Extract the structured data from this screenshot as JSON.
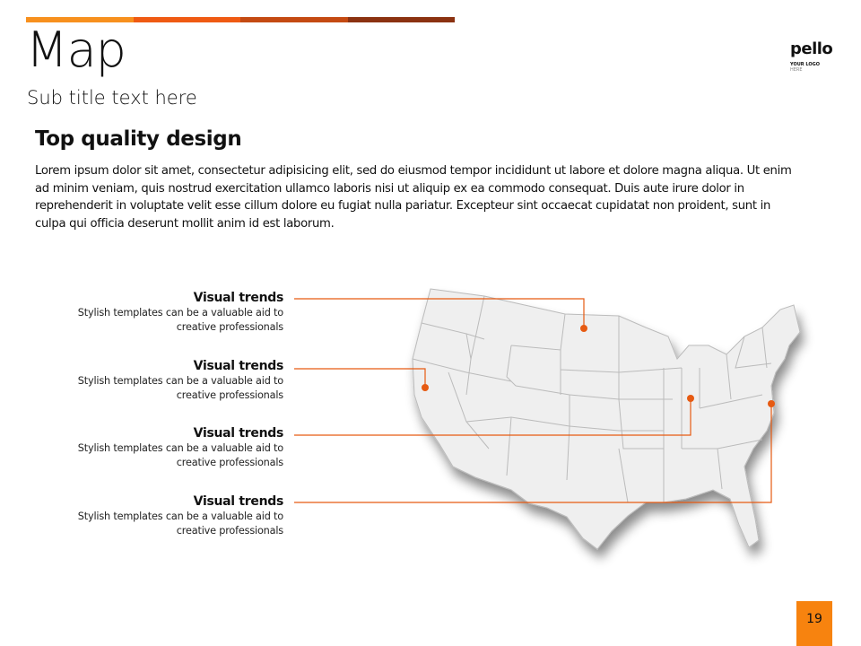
{
  "header": {
    "title": "Map",
    "subtitle": "Sub title text here",
    "accent_colors": [
      "#f7901e",
      "#ef5a13",
      "#c44a12",
      "#8b3211"
    ]
  },
  "logo": {
    "name": "pello",
    "line1": "YOUR LOGO",
    "line2": "HERE"
  },
  "content": {
    "heading": "Top quality design",
    "body": "Lorem ipsum dolor sit amet, consectetur adipisicing elit, sed do eiusmod tempor incididunt ut labore et dolore magna aliqua. Ut enim ad minim veniam, quis nostrud exercitation ullamco laboris nisi ut aliquip ex ea commodo  consequat. Duis aute irure dolor in reprehenderit in voluptate velit esse cillum dolore eu fugiat nulla pariatur. Excepteur sint occaecat cupidatat non proident, sunt in culpa qui officia deserunt mollit anim id est laborum."
  },
  "callouts": [
    {
      "title": "Visual trends",
      "text": "Stylish templates can be a valuable aid to creative professionals"
    },
    {
      "title": "Visual trends",
      "text": "Stylish templates can be a valuable aid to creative professionals"
    },
    {
      "title": "Visual trends",
      "text": "Stylish templates can be a valuable aid to creative professionals"
    },
    {
      "title": "Visual trends",
      "text": "Stylish templates can be a valuable aid to creative professionals"
    }
  ],
  "marker_color": "#e65a12",
  "page_number": "19"
}
